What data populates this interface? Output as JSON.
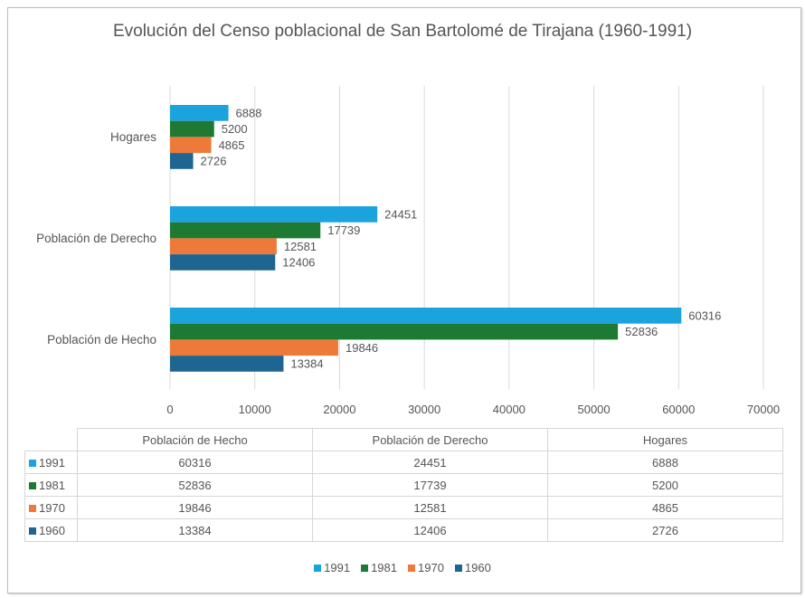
{
  "chart_data": {
    "type": "bar",
    "orientation": "horizontal",
    "title": "Evolución del Censo poblacional de San Bartolomé de Tirajana (1960-1991)",
    "categories": [
      "Hogares",
      "Población de Derecho",
      "Población de Hecho"
    ],
    "series": [
      {
        "name": "1991",
        "color": "#1aa3dc",
        "values": [
          6888,
          24451,
          60316
        ]
      },
      {
        "name": "1981",
        "color": "#1e7a32",
        "values": [
          5200,
          17739,
          52836
        ]
      },
      {
        "name": "1970",
        "color": "#ee7a3a",
        "values": [
          4865,
          12581,
          19846
        ]
      },
      {
        "name": "1960",
        "color": "#1f6591",
        "values": [
          2726,
          12406,
          13384
        ]
      }
    ],
    "xlim": [
      0,
      70000
    ],
    "xticks": [
      "0",
      "10000",
      "20000",
      "30000",
      "40000",
      "50000",
      "60000",
      "70000"
    ],
    "grid": true,
    "data_labels": true,
    "legend": "bottom",
    "data_table": {
      "headers": [
        "Población de Hecho",
        "Población de Derecho",
        "Hogares"
      ]
    }
  }
}
